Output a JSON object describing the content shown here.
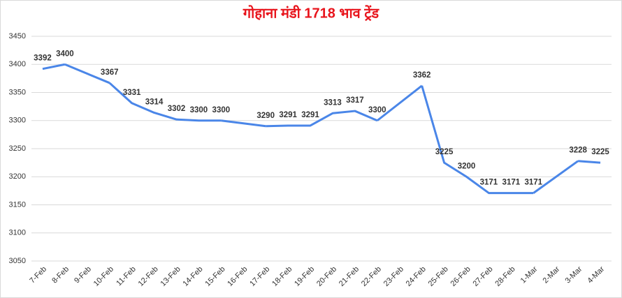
{
  "chart_data": {
    "type": "line",
    "title": "गोहाना मंडी 1718 भाव ट्रेंड",
    "categories": [
      "7-Feb",
      "8-Feb",
      "9-Feb",
      "10-Feb",
      "11-Feb",
      "12-Feb",
      "13-Feb",
      "14-Feb",
      "15-Feb",
      "16-Feb",
      "17-Feb",
      "18-Feb",
      "19-Feb",
      "20-Feb",
      "21-Feb",
      "22-Feb",
      "23-Feb",
      "24-Feb",
      "25-Feb",
      "26-Feb",
      "27-Feb",
      "28-Feb",
      "1-Mar",
      "2-Mar",
      "3-Mar",
      "4-Mar"
    ],
    "series": [
      {
        "name": "भाव",
        "color": "#4a86e8",
        "values": [
          3392,
          3400,
          null,
          3367,
          3331,
          3314,
          3302,
          3300,
          3300,
          null,
          3290,
          3291,
          3291,
          3313,
          3317,
          3300,
          null,
          3362,
          3225,
          3200,
          3171,
          3171,
          3171,
          null,
          3228,
          3225
        ]
      }
    ],
    "ylim": [
      3050,
      3450
    ],
    "yticks": [
      3050,
      3100,
      3150,
      3200,
      3250,
      3300,
      3350,
      3400,
      3450
    ],
    "grid": true,
    "span_gaps": true,
    "title_color": "#e8141c"
  }
}
